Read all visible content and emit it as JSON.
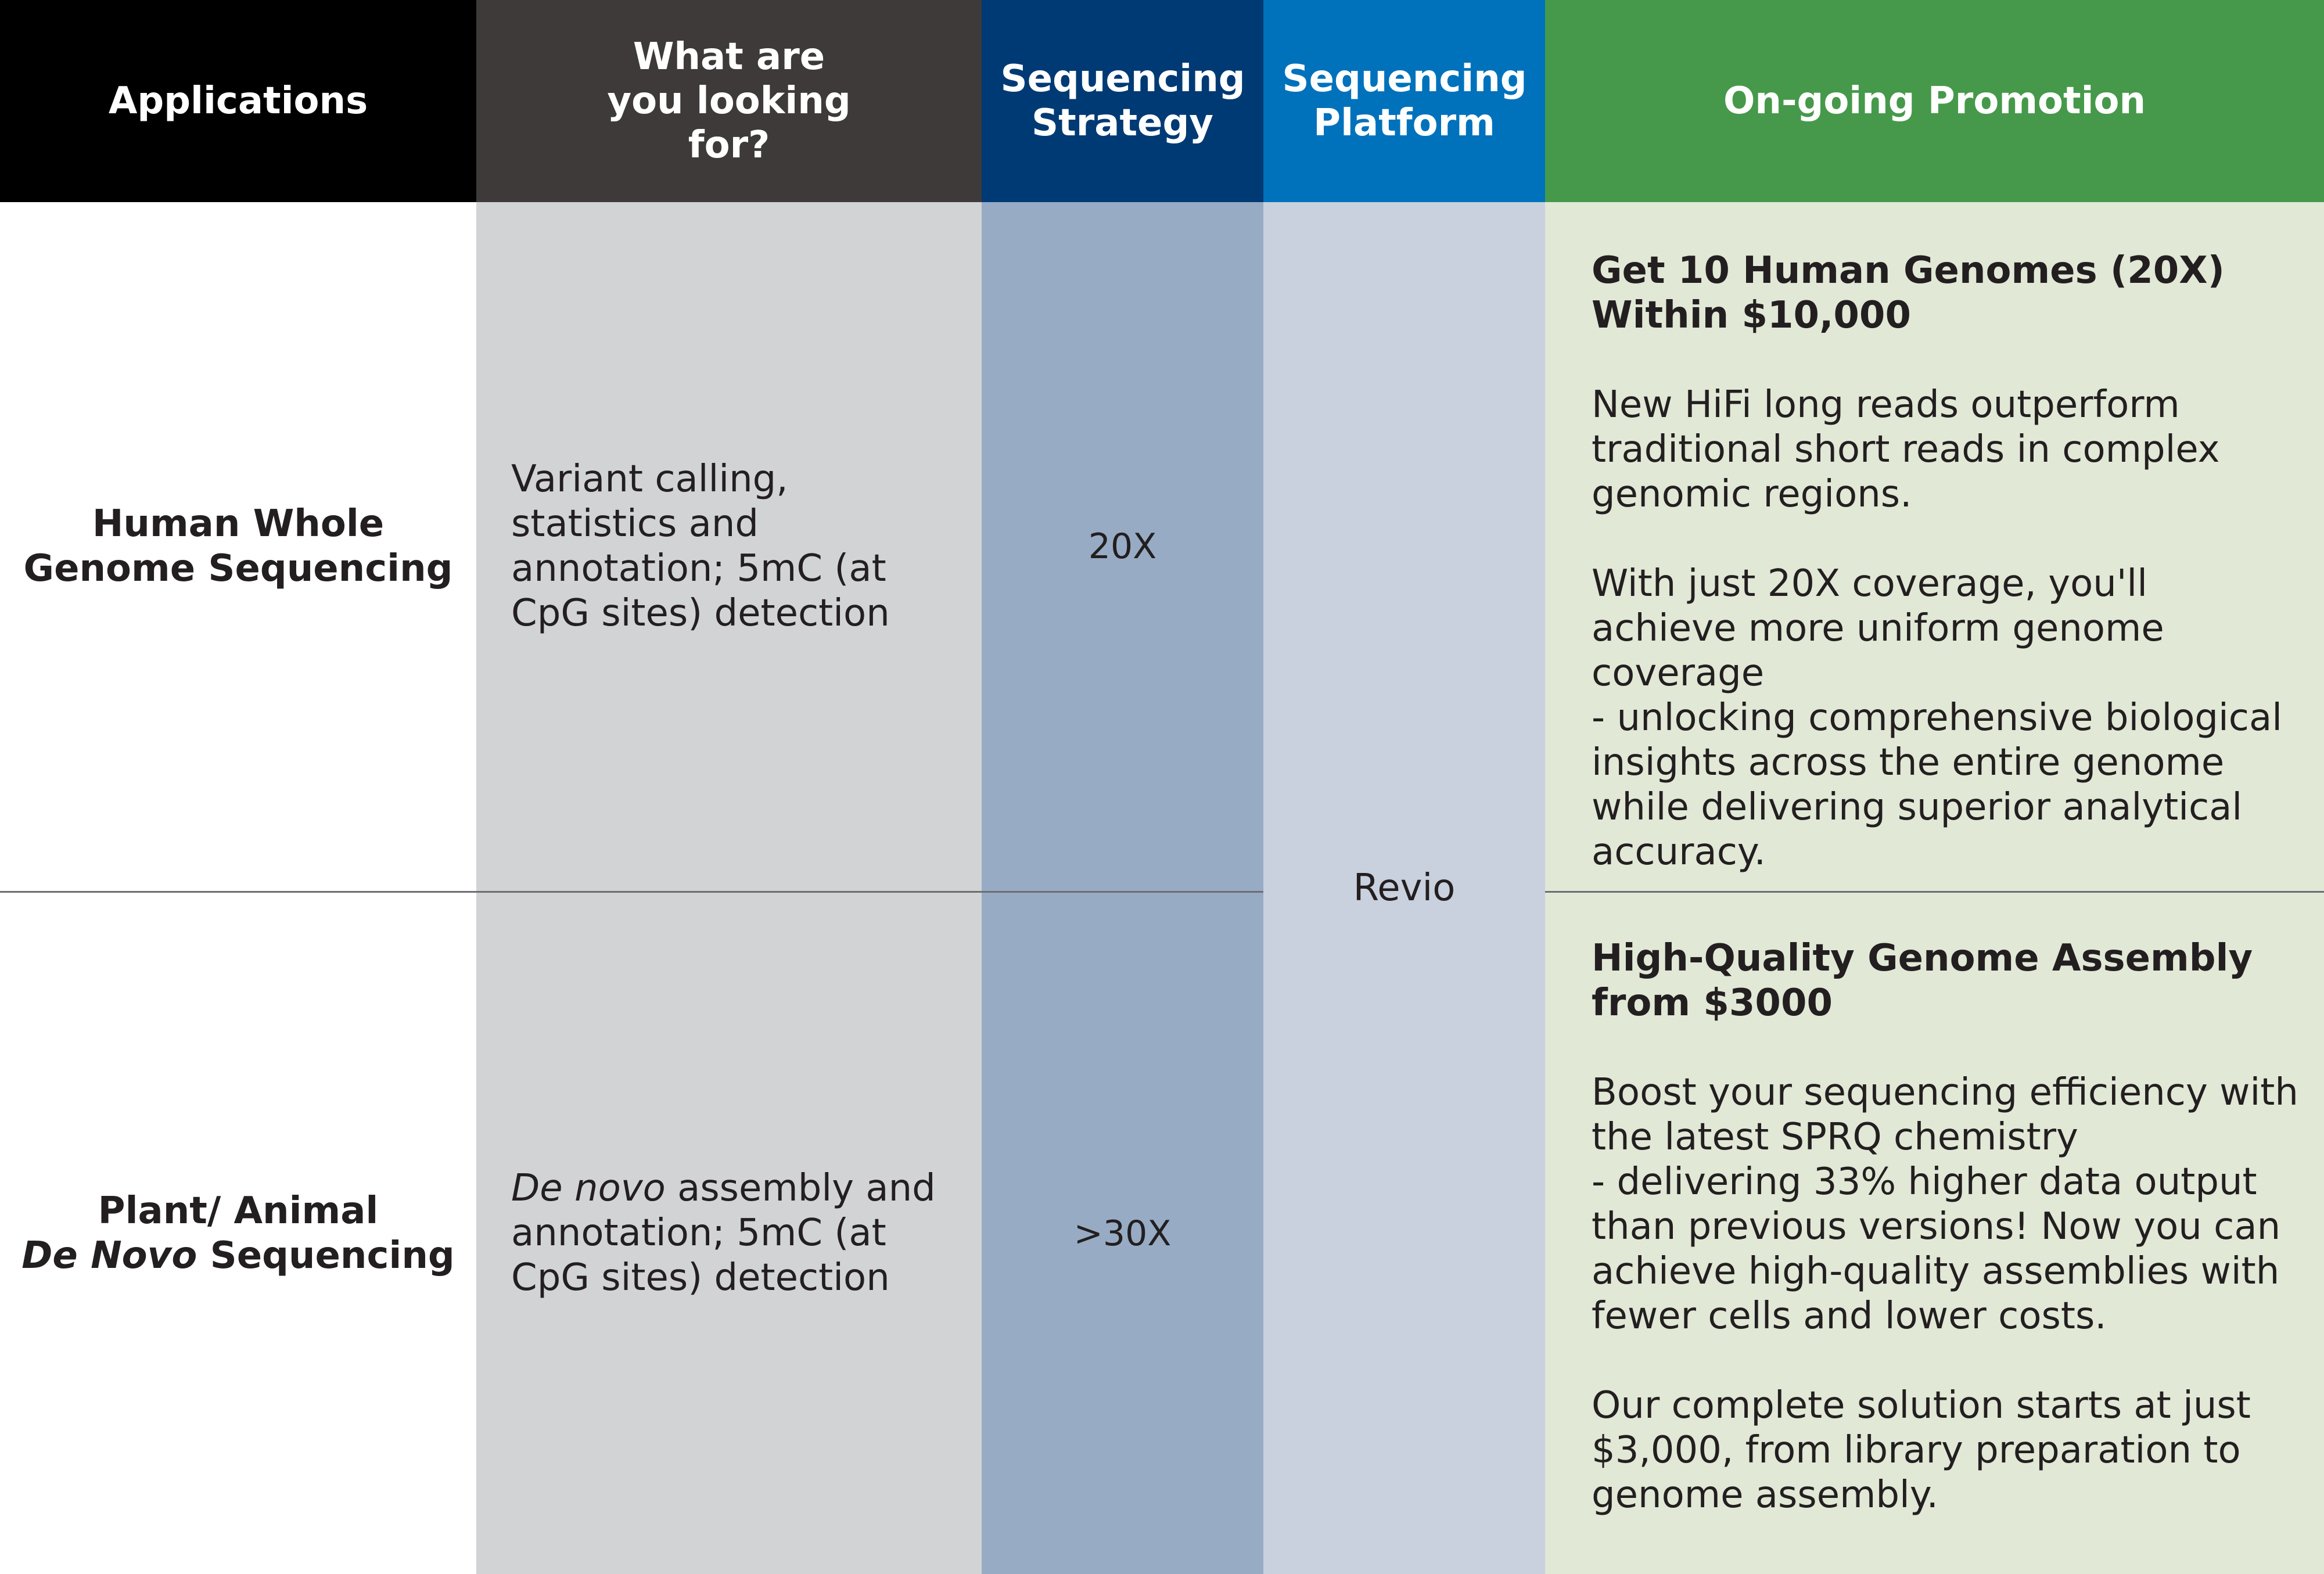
{
  "header": {
    "applications": "Applications",
    "looking_for": "What are you looking for?",
    "strategy": "Sequencing Strategy",
    "platform": "Sequencing Platform",
    "promotion": "On-going Promotion"
  },
  "rows": [
    {
      "application_line1": "Human Whole",
      "application_line2": "Genome Sequencing",
      "looking_for": "Variant calling, statistics and annotation; 5mC (at CpG sites) detection",
      "strategy": "20X",
      "promotion_title": "Get 10 Human Genomes (20X) Within $10,000",
      "promotion_para1": "New HiFi long reads outperform traditional short reads in complex genomic regions.",
      "promotion_para2": "With just 20X coverage, you'll achieve more uniform genome coverage\n - unlocking comprehensive biological insights across the entire genome while delivering superior analytical accuracy."
    },
    {
      "application_line1": "Plant/ Animal",
      "application_line2_italic": "De Novo",
      "application_line2_rest": " Sequencing",
      "looking_for_italic": "De novo",
      "looking_for_rest": " assembly and annotation; 5mC (at CpG sites) detection",
      "strategy": ">30X",
      "promotion_title": "High-Quality Genome Assembly from $3000",
      "promotion_para1": "Boost your sequencing efficiency with the latest SPRQ chemistry\n- delivering 33% higher data output than previous versions! Now you can achieve high-quality assemblies with fewer cells and lower costs.",
      "promotion_para2": "Our complete solution starts at just $3,000, from library preparation to genome assembly."
    }
  ],
  "platform": "Revio",
  "colors": {
    "header_applications": "#000000",
    "header_looking_for": "#3e3a39",
    "header_strategy": "#003a74",
    "header_platform": "#0072bc",
    "header_promotion": "#46994a",
    "col_looking_for": "#d2d3d5",
    "col_strategy": "#97abc4",
    "col_platform": "#c9d0de",
    "col_promotion": "#e1e8d6"
  }
}
